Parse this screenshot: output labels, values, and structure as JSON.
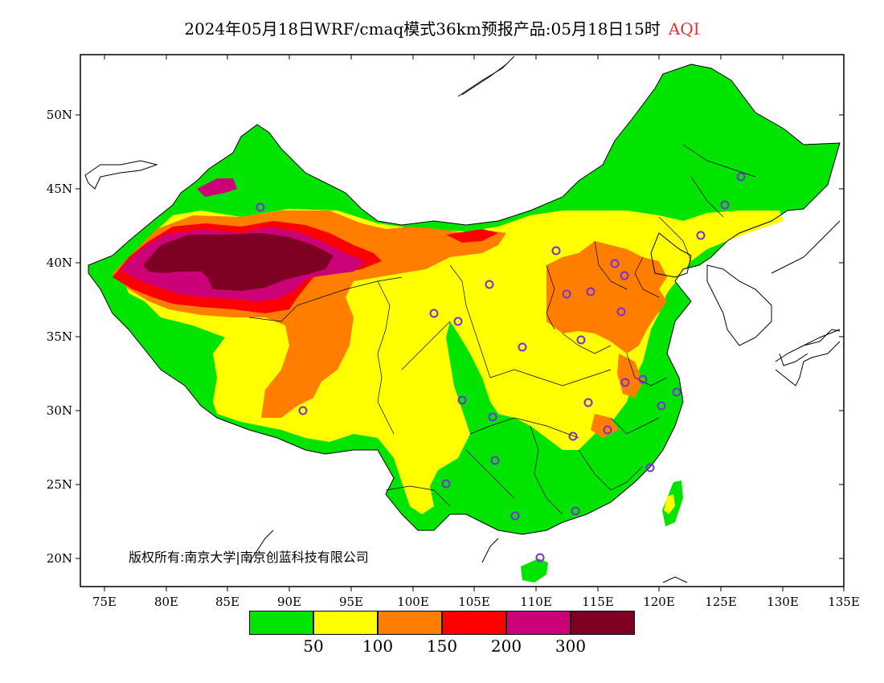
{
  "title": {
    "main": "2024年05月18日WRF/cmaq模式36km预报产品:05月18日15时",
    "variable": "AQI"
  },
  "copyright": "版权所有:南京大学|南京创蓝科技有限公司",
  "axes": {
    "x_ticks": [
      "75E",
      "80E",
      "85E",
      "90E",
      "95E",
      "100E",
      "105E",
      "110E",
      "115E",
      "120E",
      "125E",
      "130E",
      "135E"
    ],
    "y_ticks": [
      "50N",
      "45N",
      "40N",
      "35N",
      "30N",
      "25N",
      "20N"
    ]
  },
  "legend": {
    "colors": [
      "#00e400",
      "#ffff00",
      "#ff7e00",
      "#ff0000",
      "#cc0077",
      "#7e0023"
    ],
    "values": [
      "50",
      "100",
      "150",
      "200",
      "300"
    ]
  },
  "map": {
    "extent": {
      "lon": [
        73,
        135
      ],
      "lat": [
        18,
        54
      ]
    },
    "station_marker_color": "#7b2fd6"
  }
}
